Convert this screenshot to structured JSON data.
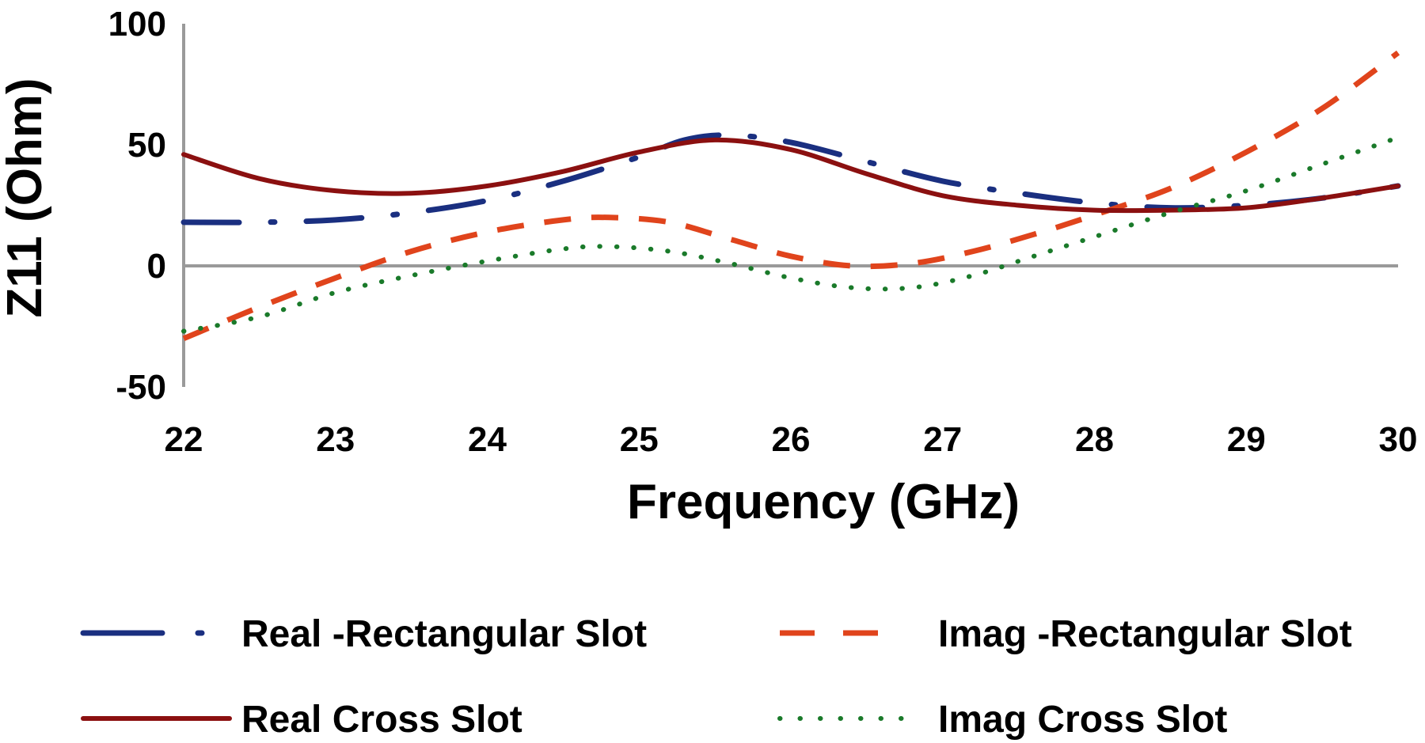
{
  "chart_data": {
    "type": "line",
    "title": "",
    "xlabel": "Frequency (GHz)",
    "ylabel": "Z11 (Ohm)",
    "xlim": [
      22,
      30
    ],
    "ylim": [
      -50,
      100
    ],
    "xticks": [
      "22",
      "23",
      "24",
      "25",
      "26",
      "27",
      "28",
      "29",
      "30"
    ],
    "yticks": [
      "100",
      "50",
      "0",
      "-50"
    ],
    "grid": false,
    "legend_position": "bottom",
    "series": [
      {
        "name": "Real -Rectangular Slot",
        "color": "#1a2f80",
        "style": "long-dash-dot",
        "x": [
          22,
          22.5,
          23,
          23.5,
          24,
          24.5,
          25,
          25.3,
          25.6,
          26,
          26.5,
          27,
          27.5,
          28,
          28.5,
          29,
          29.5,
          30
        ],
        "y": [
          18,
          18,
          19,
          22,
          27,
          35,
          45,
          52,
          54,
          51,
          43,
          35,
          30,
          26,
          24,
          25,
          28,
          33
        ]
      },
      {
        "name": "Imag -Rectangular Slot",
        "color": "#e0441c",
        "style": "dash",
        "x": [
          22,
          22.5,
          23,
          23.5,
          24,
          24.5,
          24.8,
          25.2,
          25.6,
          26,
          26.4,
          26.8,
          27.2,
          27.6,
          28,
          28.5,
          29,
          29.5,
          30
        ],
        "y": [
          -30,
          -17,
          -5,
          6,
          14,
          19,
          20,
          18,
          11,
          4,
          0,
          1,
          6,
          13,
          21,
          32,
          47,
          65,
          88
        ]
      },
      {
        "name": "Real Cross Slot",
        "color": "#8b1010",
        "style": "solid",
        "x": [
          22,
          22.5,
          23,
          23.5,
          24,
          24.5,
          25,
          25.5,
          26,
          26.5,
          27,
          27.5,
          28,
          28.5,
          29,
          29.5,
          30
        ],
        "y": [
          46,
          36,
          31,
          30,
          33,
          39,
          47,
          52,
          48,
          38,
          29,
          25,
          23,
          23,
          24,
          28,
          33
        ]
      },
      {
        "name": "Imag Cross Slot",
        "color": "#1a7a2a",
        "style": "dot",
        "x": [
          22,
          22.5,
          23,
          23.5,
          24,
          24.5,
          24.8,
          25.2,
          25.6,
          26,
          26.4,
          26.8,
          27.2,
          27.6,
          28,
          28.5,
          29,
          29.5,
          30
        ],
        "y": [
          -27,
          -21,
          -11,
          -4,
          2,
          7,
          8,
          6,
          1,
          -5,
          -9,
          -9,
          -4,
          4,
          12,
          22,
          31,
          42,
          53
        ]
      }
    ]
  }
}
